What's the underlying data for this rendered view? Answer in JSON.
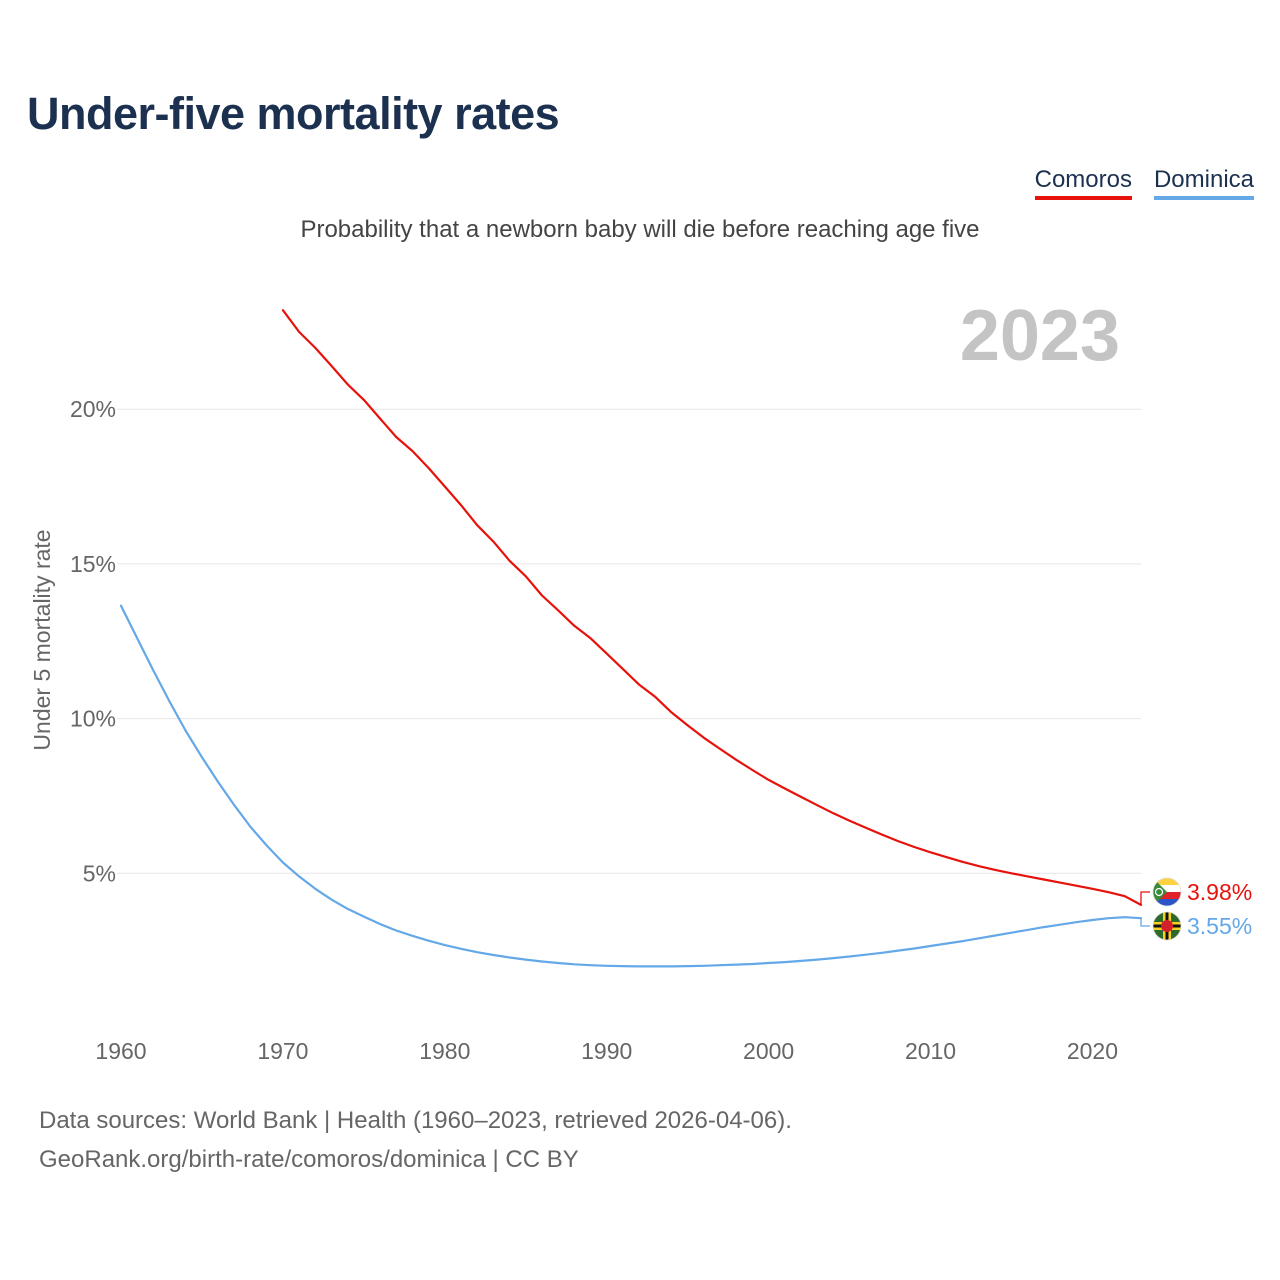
{
  "title": "Under-five mortality rates",
  "subtitle": "Probability that a newborn baby will die before reaching age five",
  "legend": [
    {
      "name": "Comoros",
      "color": "#e8120c"
    },
    {
      "name": "Dominica",
      "color": "#64a8e8"
    }
  ],
  "year_label": "2023",
  "end_labels": {
    "comoros": "3.98%",
    "dominica": "3.55%"
  },
  "sources": {
    "line1": "Data sources: World Bank | Health (1960–2023, retrieved 2026-04-06).",
    "line2": "GeoRank.org/birth-rate/comoros/dominica | CC BY"
  },
  "chart_data": {
    "type": "line",
    "title": "Under-five mortality rates",
    "xlabel": "",
    "ylabel": "Under 5 mortality rate",
    "xlim": [
      1960,
      2023
    ],
    "ylim": [
      0,
      23
    ],
    "x_ticks": [
      1960,
      1970,
      1980,
      1990,
      2000,
      2010,
      2020
    ],
    "y_ticks": [
      5,
      10,
      15,
      20
    ],
    "y_tick_labels": [
      "5%",
      "10%",
      "15%",
      "20%"
    ],
    "grid": true,
    "series": [
      {
        "name": "Comoros",
        "color": "#e8120c",
        "x": [
          1970,
          1971,
          1972,
          1973,
          1974,
          1975,
          1976,
          1977,
          1978,
          1979,
          1980,
          1981,
          1982,
          1983,
          1984,
          1985,
          1986,
          1987,
          1988,
          1989,
          1990,
          1991,
          1992,
          1993,
          1994,
          1995,
          1996,
          1997,
          1998,
          1999,
          2000,
          2001,
          2002,
          2003,
          2004,
          2005,
          2006,
          2007,
          2008,
          2009,
          2010,
          2011,
          2012,
          2013,
          2014,
          2015,
          2016,
          2017,
          2018,
          2019,
          2020,
          2021,
          2022,
          2023
        ],
        "values": [
          23.2,
          22.5,
          21.98,
          21.4,
          20.8,
          20.3,
          19.7,
          19.1,
          18.65,
          18.1,
          17.5,
          16.9,
          16.25,
          15.72,
          15.1,
          14.6,
          13.98,
          13.5,
          13.0,
          12.6,
          12.1,
          11.6,
          11.1,
          10.7,
          10.2,
          9.78,
          9.38,
          9.02,
          8.67,
          8.34,
          8.02,
          7.74,
          7.47,
          7.2,
          6.94,
          6.7,
          6.47,
          6.25,
          6.04,
          5.85,
          5.68,
          5.52,
          5.37,
          5.23,
          5.11,
          5.0,
          4.9,
          4.8,
          4.7,
          4.6,
          4.5,
          4.39,
          4.26,
          3.98
        ]
      },
      {
        "name": "Dominica",
        "color": "#64a8e8",
        "x": [
          1960,
          1961,
          1962,
          1963,
          1964,
          1965,
          1966,
          1967,
          1968,
          1969,
          1970,
          1971,
          1972,
          1973,
          1974,
          1975,
          1976,
          1977,
          1978,
          1979,
          1980,
          1981,
          1982,
          1983,
          1984,
          1985,
          1986,
          1987,
          1988,
          1989,
          1990,
          1991,
          1992,
          1993,
          1994,
          1995,
          1996,
          1997,
          1998,
          1999,
          2000,
          2001,
          2002,
          2003,
          2004,
          2005,
          2006,
          2007,
          2008,
          2009,
          2010,
          2011,
          2012,
          2013,
          2014,
          2015,
          2016,
          2017,
          2018,
          2019,
          2020,
          2021,
          2022,
          2023
        ],
        "values": [
          13.65,
          12.6,
          11.55,
          10.55,
          9.6,
          8.75,
          7.95,
          7.2,
          6.5,
          5.9,
          5.35,
          4.9,
          4.5,
          4.15,
          3.85,
          3.6,
          3.36,
          3.15,
          2.98,
          2.82,
          2.68,
          2.56,
          2.45,
          2.36,
          2.28,
          2.21,
          2.15,
          2.1,
          2.06,
          2.03,
          2.01,
          2.0,
          1.99,
          1.99,
          1.99,
          2.0,
          2.01,
          2.03,
          2.05,
          2.07,
          2.1,
          2.13,
          2.17,
          2.21,
          2.26,
          2.31,
          2.37,
          2.43,
          2.5,
          2.57,
          2.65,
          2.73,
          2.81,
          2.9,
          2.99,
          3.08,
          3.17,
          3.26,
          3.34,
          3.42,
          3.49,
          3.55,
          3.58,
          3.55
        ]
      }
    ]
  }
}
